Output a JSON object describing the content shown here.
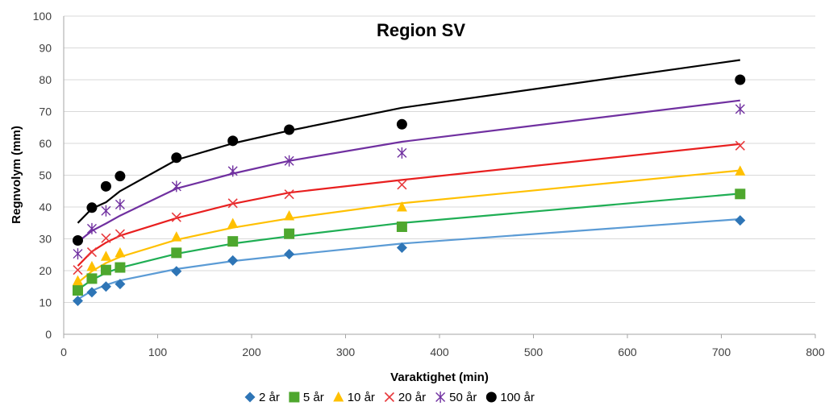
{
  "chart_data": {
    "type": "scatter",
    "title": "Region SV",
    "xlabel": "Varaktighet (min)",
    "ylabel": "Regnvolym (mm)",
    "xlim": [
      0,
      800
    ],
    "ylim": [
      0,
      100
    ],
    "xticks": [
      0,
      100,
      200,
      300,
      400,
      500,
      600,
      700,
      800
    ],
    "yticks": [
      0,
      10,
      20,
      30,
      40,
      50,
      60,
      70,
      80,
      90,
      100
    ],
    "grid": "horizontal",
    "legend_position": "bottom",
    "x": [
      15,
      30,
      45,
      60,
      120,
      180,
      240,
      360,
      720
    ],
    "series": [
      {
        "name": "2 år",
        "marker": "diamond",
        "color": "#2E75B6",
        "line_color": "#5B9BD5",
        "points": [
          10.5,
          13.2,
          15.0,
          15.8,
          19.8,
          23.2,
          25.2,
          27.2,
          35.8
        ],
        "fit": [
          11.0,
          13.7,
          15.5,
          16.9,
          20.5,
          23.0,
          24.9,
          28.5,
          36.2
        ]
      },
      {
        "name": "5 år",
        "marker": "square",
        "color": "#4EA72E",
        "line_color": "#1FAE54",
        "points": [
          13.8,
          17.5,
          20.2,
          21.0,
          25.6,
          29.2,
          31.6,
          33.8,
          44.1
        ],
        "fit": [
          14.0,
          17.1,
          19.3,
          20.9,
          25.3,
          28.5,
          30.8,
          35.0,
          44.2
        ]
      },
      {
        "name": "10 år",
        "marker": "triangle",
        "color": "#FFC000",
        "line_color": "#FFC000",
        "points": [
          16.8,
          21.3,
          24.5,
          25.6,
          30.6,
          34.8,
          37.2,
          40.0,
          51.3
        ],
        "fit": [
          16.2,
          19.8,
          22.4,
          24.3,
          29.7,
          33.5,
          36.4,
          41.2,
          51.5
        ]
      },
      {
        "name": "20 år",
        "marker": "x",
        "color": "#E8393C",
        "line_color": "#E81F1F",
        "points": [
          20.2,
          25.8,
          30.2,
          31.5,
          36.8,
          41.2,
          44.0,
          47.0,
          59.3
        ],
        "fit": [
          21.5,
          26.0,
          28.8,
          31.0,
          36.5,
          41.0,
          44.5,
          48.5,
          59.8
        ]
      },
      {
        "name": "50 år",
        "marker": "star",
        "color": "#7030A0",
        "line_color": "#7030A0",
        "points": [
          25.3,
          33.2,
          38.8,
          40.8,
          46.5,
          51.3,
          54.5,
          57.0,
          70.8
        ],
        "fit": [
          29.0,
          32.5,
          34.8,
          37.3,
          45.8,
          50.5,
          54.5,
          60.5,
          73.5
        ]
      },
      {
        "name": "100 år",
        "marker": "circle",
        "color": "#000000",
        "line_color": "#000000",
        "points": [
          29.5,
          39.8,
          46.5,
          49.7,
          55.5,
          60.8,
          64.3,
          66.0,
          80.0
        ],
        "fit": [
          35.0,
          39.5,
          41.5,
          45.0,
          54.8,
          60.0,
          64.0,
          71.2,
          86.2
        ]
      }
    ]
  }
}
